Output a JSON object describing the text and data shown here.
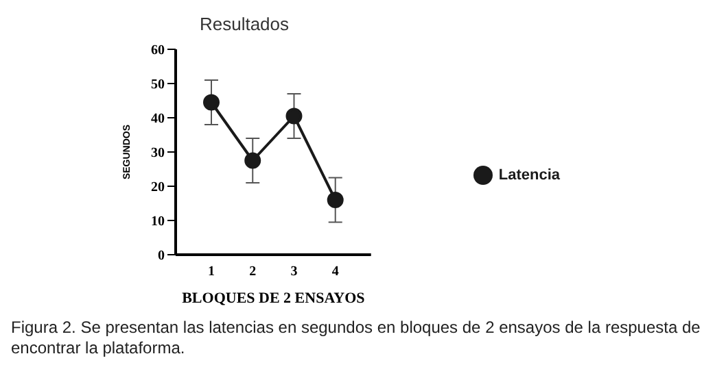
{
  "chart_data": {
    "type": "line",
    "title": "Resultados",
    "xlabel": "BLOQUES DE 2 ENSAYOS",
    "ylabel": "SEGUNDOS",
    "categories": [
      "1",
      "2",
      "3",
      "4"
    ],
    "series": [
      {
        "name": "Latencia",
        "color": "#1a1a1a",
        "values": [
          44.5,
          27.5,
          40.5,
          16
        ],
        "errors": [
          6.5,
          6.5,
          6.5,
          6.5
        ]
      }
    ],
    "ylim": [
      0,
      60
    ],
    "yticks": [
      0,
      10,
      20,
      30,
      40,
      50,
      60
    ],
    "grid": false,
    "legend": "right",
    "marker": "circle",
    "line_style": "solid",
    "annotations": [
      "Figura 2. Se presentan las latencias en segundos en bloques de 2 ensayos de la respuesta de encontrar la plataforma."
    ]
  }
}
